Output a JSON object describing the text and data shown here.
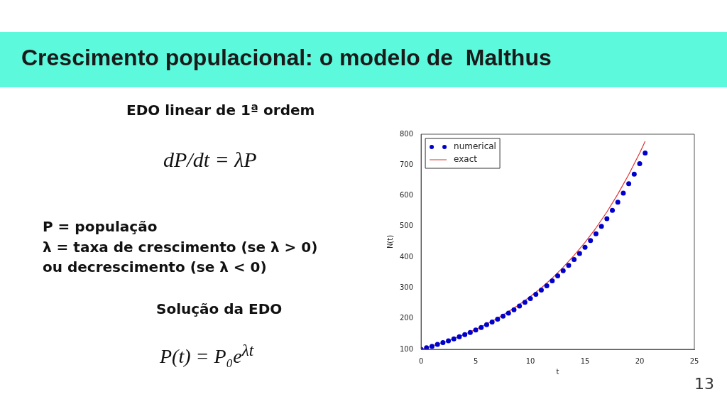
{
  "chart_data": {
    "type": "line",
    "title": "Crescimento populacional: o modelo de  Malthus",
    "xlabel": "t",
    "ylabel": "N(t)",
    "xlim": [
      0,
      25
    ],
    "xticks": [
      0,
      5,
      10,
      15,
      20,
      25
    ],
    "ylim": [
      100,
      800
    ],
    "yticks": [
      100,
      200,
      300,
      400,
      500,
      600,
      700,
      800
    ],
    "grid": false,
    "legend": "top left",
    "series": [
      {
        "name": "numerical",
        "type": "scatter",
        "marker": "circle",
        "color": "#0000cc",
        "x": [
          0,
          0.5,
          1,
          1.5,
          2,
          2.5,
          3,
          3.5,
          4,
          4.5,
          5,
          5.5,
          6,
          6.5,
          7,
          7.5,
          8,
          8.5,
          9,
          9.5,
          10,
          10.5,
          11,
          11.5,
          12,
          12.5,
          13,
          13.5,
          14,
          14.5,
          15,
          15.5,
          16,
          16.5,
          17,
          17.5,
          18,
          18.5,
          19,
          19.5,
          20,
          20.5
        ],
        "values": [
          100,
          105,
          110,
          116,
          122,
          128,
          134,
          141,
          148,
          155,
          163,
          171,
          180,
          189,
          198,
          208,
          218,
          229,
          241,
          253,
          265,
          279,
          293,
          307,
          323,
          339,
          356,
          373,
          392,
          412,
          432,
          454,
          476,
          500,
          525,
          552,
          579,
          608,
          639,
          670,
          704,
          739
        ]
      },
      {
        "name": "exact",
        "marker": "none",
        "line_style": "solid",
        "color": "#dd3333",
        "x": [
          0,
          1,
          2,
          3,
          4,
          5,
          6,
          7,
          8,
          9,
          10,
          11,
          12,
          13,
          14,
          15,
          16,
          17,
          18,
          19,
          20,
          20.5
        ],
        "values": [
          100,
          111,
          122,
          135,
          149,
          165,
          182,
          201,
          223,
          246,
          272,
          300,
          332,
          367,
          406,
          448,
          495,
          547,
          605,
          669,
          739,
          777
        ]
      }
    ],
    "annotations": [
      "EDO linear de 1ª ordem",
      "dP/dt = λP",
      "P = população",
      "λ = taxa de crescimento (se λ > 0)",
      "ou decrescimento (se λ < 0)",
      "Solução da EDO",
      "P(t) = P₀e$^{λt}$",
      "13"
    ]
  }
}
